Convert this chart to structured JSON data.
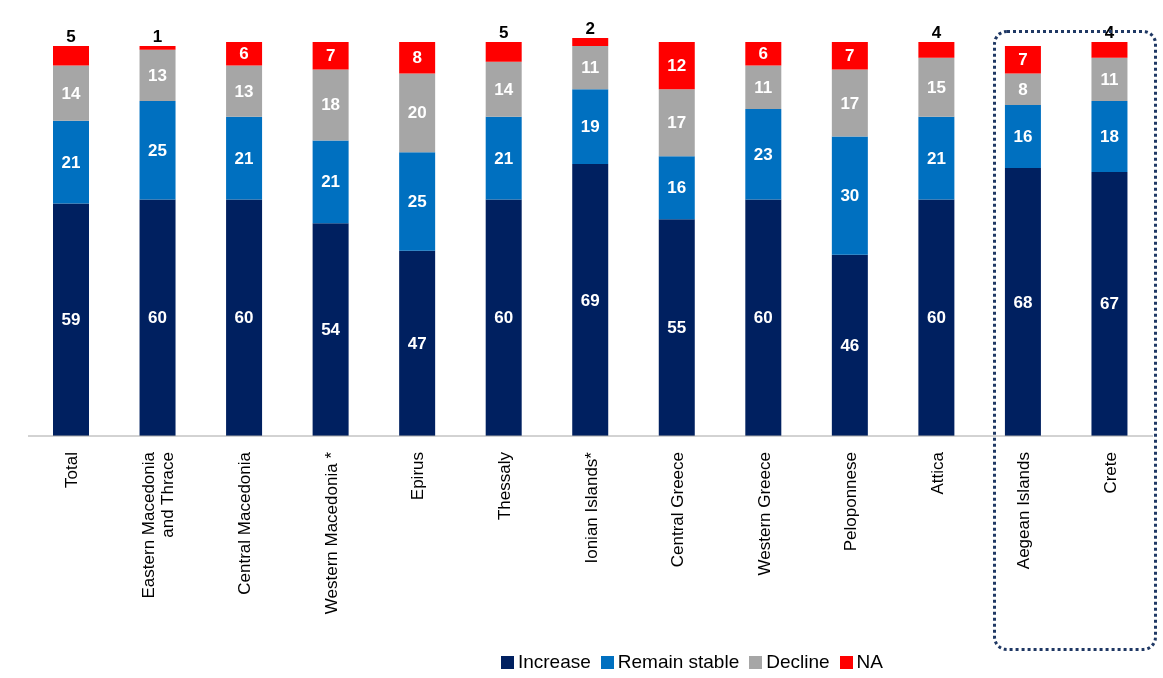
{
  "chart_data": {
    "type": "bar",
    "stacked": true,
    "data_labels": true,
    "legend": "bottom",
    "categories": [
      "Total",
      "Eastern Macedonia and Thrace",
      "Central Macedonia",
      "Western Macedonia *",
      "Epirus",
      "Thessaly",
      "Ionian Islands*",
      "Central Greece",
      "Western Greece",
      "Peloponnese",
      "Attica",
      "Aegean Islands",
      "Crete"
    ],
    "series": [
      {
        "name": "Increase",
        "color": "#002060",
        "values": [
          59,
          60,
          60,
          54,
          47,
          60,
          69,
          55,
          60,
          46,
          60,
          68,
          67
        ]
      },
      {
        "name": "Remain stable",
        "color": "#0070c0",
        "values": [
          21,
          25,
          21,
          21,
          25,
          21,
          19,
          16,
          23,
          30,
          21,
          16,
          18
        ]
      },
      {
        "name": "Decline",
        "color": "#a6a6a6",
        "values": [
          14,
          13,
          13,
          18,
          20,
          14,
          11,
          17,
          11,
          17,
          15,
          8,
          11
        ]
      },
      {
        "name": "NA",
        "color": "#ff0000",
        "values": [
          5,
          1,
          6,
          7,
          8,
          5,
          2,
          12,
          6,
          7,
          4,
          7,
          4
        ]
      }
    ]
  }
}
